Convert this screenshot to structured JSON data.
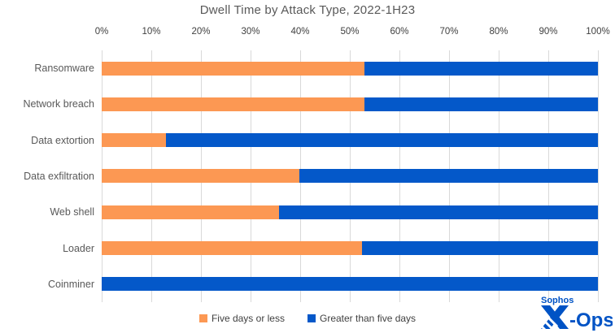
{
  "chart_data": {
    "type": "bar",
    "orientation": "horizontal",
    "stacked": true,
    "title": "Dwell Time by Attack Type, 2022-1H23",
    "categories": [
      "Ransomware",
      "Network breach",
      "Data extortion",
      "Data exfiltration",
      "Web shell",
      "Loader",
      "Coinminer"
    ],
    "series": [
      {
        "name": "Five days or less",
        "color": "#FC9853",
        "values": [
          53,
          53,
          13,
          39.8,
          35.7,
          52.5,
          0
        ]
      },
      {
        "name": "Greater than five days",
        "color": "#0458C9",
        "values": [
          47,
          47,
          87,
          60.2,
          64.3,
          47.5,
          100
        ]
      }
    ],
    "x_axis": {
      "position": "top",
      "min": 0,
      "max": 100,
      "ticks": [
        "0%",
        "10%",
        "20%",
        "30%",
        "40%",
        "50%",
        "60%",
        "70%",
        "80%",
        "90%",
        "100%"
      ],
      "grid": true
    },
    "legend": {
      "position": "bottom",
      "entries": [
        "Five days or less",
        "Greater than five days"
      ]
    }
  },
  "colors": {
    "orange_series": "#FC9853",
    "blue_series": "#0458C9",
    "gridline": "#D9D9D9",
    "title_text": "#595959",
    "category_text": "#595959",
    "tick_text": "#404040",
    "logo_blue": "#0053C5"
  },
  "branding": {
    "line1": "Sophos",
    "line2": "-Ops"
  }
}
